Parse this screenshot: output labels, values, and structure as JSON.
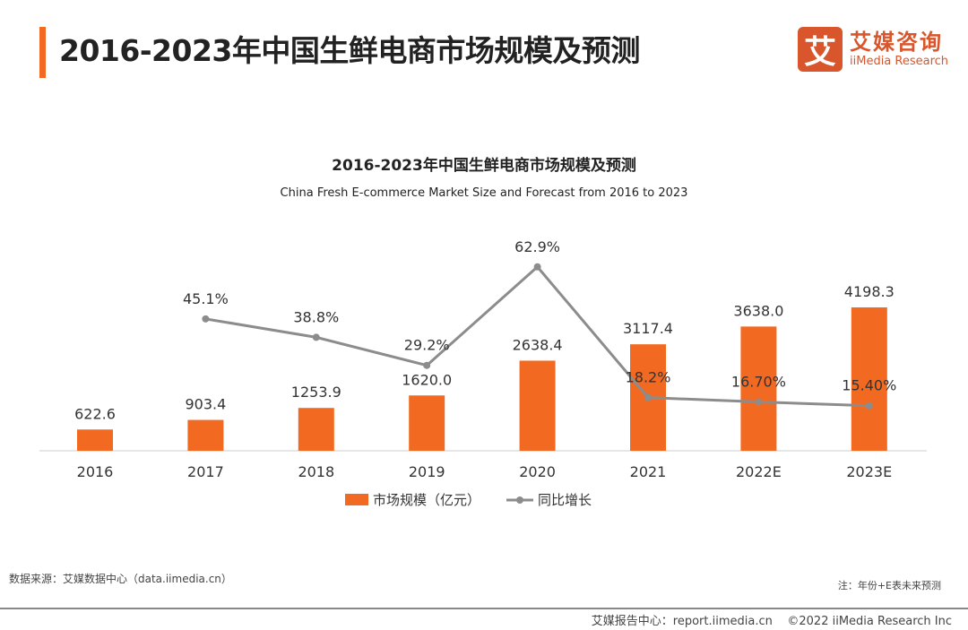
{
  "header": {
    "title": "2016-2023年中国生鲜电商市场规模及预测"
  },
  "logo": {
    "mark": "艾",
    "cn": "艾媒咨询",
    "en": "iiMedia Research"
  },
  "chart_data": {
    "type": "bar+line",
    "title": "2016-2023年中国生鲜电商市场规模及预测",
    "subtitle": "China Fresh E-commerce Market Size and Forecast from 2016 to 2023",
    "categories": [
      "2016",
      "2017",
      "2018",
      "2019",
      "2020",
      "2021",
      "2022E",
      "2023E"
    ],
    "series": [
      {
        "name": "市场规模（亿元）",
        "type": "bar",
        "color": "#f26a21",
        "values": [
          622.6,
          903.4,
          1253.9,
          1620.0,
          2638.4,
          3117.4,
          3638.0,
          4198.3
        ],
        "labels": [
          "622.6",
          "903.4",
          "1253.9",
          "1620.0",
          "2638.4",
          "3117.4",
          "3638.0",
          "4198.3"
        ]
      },
      {
        "name": "同比增长",
        "type": "line",
        "color": "#8c8c8c",
        "values": [
          null,
          45.1,
          38.8,
          29.2,
          62.9,
          18.2,
          16.7,
          15.4
        ],
        "labels": [
          "",
          "45.1%",
          "38.8%",
          "29.2%",
          "62.9%",
          "18.2%",
          "16.70%",
          "15.40%"
        ]
      }
    ],
    "legend": "bottom",
    "grid": false
  },
  "footer": {
    "source": "数据来源：艾媒数据中心（data.iimedia.cn）",
    "note": "注：年份+E表未来预测",
    "report": "艾媒报告中心：report.iimedia.cn",
    "copyright": "©2022  iiMedia Research  Inc"
  }
}
